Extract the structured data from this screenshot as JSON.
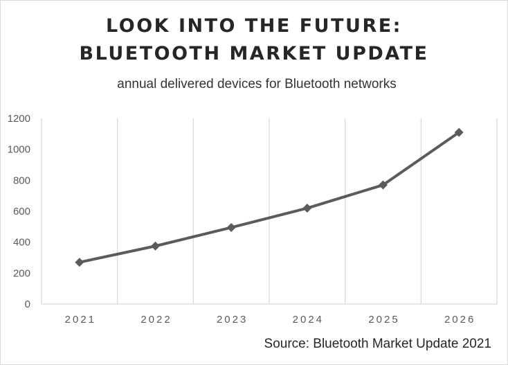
{
  "title_line1": "LOOK INTO THE FUTURE:",
  "title_line2": "BLUETOOTH MARKET UPDATE",
  "subtitle": "annual delivered devices for Bluetooth networks",
  "source": "Source: Bluetooth Market Update 2021",
  "colors": {
    "line": "#5b5b5b",
    "gridline": "#d9d9d9",
    "text": "#262626"
  },
  "chart_data": {
    "type": "line",
    "title": "LOOK INTO THE FUTURE: BLUETOOTH MARKET UPDATE",
    "subtitle": "annual delivered devices for Bluetooth networks",
    "categories": [
      "2021",
      "2022",
      "2023",
      "2024",
      "2025",
      "2026"
    ],
    "series": [
      {
        "values": [
          270,
          375,
          495,
          620,
          770,
          1110
        ]
      }
    ],
    "ylim": [
      0,
      1200
    ],
    "yticks": [
      0,
      200,
      400,
      600,
      800,
      1000,
      1200
    ],
    "marker": "diamond",
    "grid": "vertical",
    "legend": "none"
  }
}
